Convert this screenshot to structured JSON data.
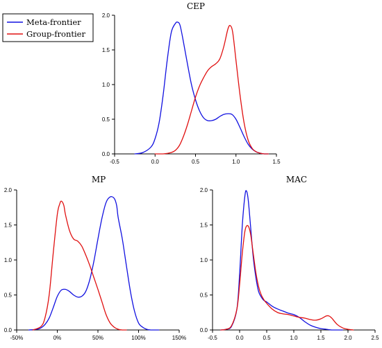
{
  "legend": {
    "items": [
      {
        "name": "Meta-frontier",
        "color": "#1010e0"
      },
      {
        "name": "Group-frontier",
        "color": "#e01010"
      }
    ],
    "placement": "top-left"
  },
  "chart_data": [
    {
      "type": "line",
      "title": "CEP",
      "xlabel": "",
      "ylabel": "",
      "xlim": [
        -0.5,
        1.5
      ],
      "ylim": [
        0,
        2.0
      ],
      "xticks": [
        "-0.5",
        "0.0",
        "0.5",
        "1.0",
        "1.5"
      ],
      "xtick_values": [
        -0.5,
        0.0,
        0.5,
        1.0,
        1.5
      ],
      "yticks": [
        "0.0",
        "0.5",
        "1.0",
        "1.5",
        "2.0"
      ],
      "ytick_values": [
        0,
        0.5,
        1.0,
        1.5,
        2.0
      ],
      "grid": false,
      "series": [
        {
          "name": "Meta-frontier",
          "color": "#1010e0",
          "x": [
            -0.25,
            -0.15,
            -0.05,
            0.0,
            0.05,
            0.1,
            0.15,
            0.2,
            0.25,
            0.28,
            0.31,
            0.35,
            0.4,
            0.45,
            0.5,
            0.55,
            0.6,
            0.65,
            0.7,
            0.75,
            0.8,
            0.85,
            0.9,
            0.95,
            1.0,
            1.05,
            1.1,
            1.15,
            1.2,
            1.25,
            1.3,
            1.35,
            1.4
          ],
          "values": [
            0.0,
            0.02,
            0.1,
            0.22,
            0.45,
            0.85,
            1.35,
            1.75,
            1.88,
            1.9,
            1.85,
            1.62,
            1.3,
            1.0,
            0.78,
            0.62,
            0.52,
            0.48,
            0.48,
            0.5,
            0.54,
            0.57,
            0.58,
            0.57,
            0.5,
            0.38,
            0.25,
            0.14,
            0.07,
            0.03,
            0.01,
            0.0,
            0.0
          ]
        },
        {
          "name": "Group-frontier",
          "color": "#e01010",
          "x": [
            0.0,
            0.1,
            0.2,
            0.25,
            0.3,
            0.35,
            0.4,
            0.45,
            0.5,
            0.55,
            0.6,
            0.65,
            0.7,
            0.75,
            0.8,
            0.85,
            0.9,
            0.93,
            0.96,
            1.0,
            1.05,
            1.1,
            1.15,
            1.2,
            1.25,
            1.3,
            1.35,
            1.4
          ],
          "values": [
            0.0,
            0.0,
            0.02,
            0.05,
            0.12,
            0.25,
            0.42,
            0.62,
            0.82,
            0.98,
            1.1,
            1.2,
            1.26,
            1.3,
            1.37,
            1.55,
            1.8,
            1.85,
            1.75,
            1.35,
            0.85,
            0.45,
            0.2,
            0.08,
            0.03,
            0.01,
            0.0,
            0.0
          ]
        }
      ]
    },
    {
      "type": "line",
      "title": "MP",
      "xlabel": "",
      "ylabel": "",
      "xlim": [
        -50,
        150
      ],
      "ylim": [
        0,
        2.0
      ],
      "xticks": [
        "-50%",
        "0%",
        "50%",
        "100%",
        "150%"
      ],
      "xtick_values": [
        -50,
        0,
        50,
        100,
        150
      ],
      "yticks": [
        "0.0",
        "0.5",
        "1.0",
        "1.5",
        "2.0"
      ],
      "ytick_values": [
        0,
        0.5,
        1.0,
        1.5,
        2.0
      ],
      "grid": false,
      "series": [
        {
          "name": "Meta-frontier",
          "color": "#1010e0",
          "x": [
            -35,
            -25,
            -20,
            -15,
            -10,
            -5,
            0,
            5,
            10,
            15,
            20,
            25,
            30,
            35,
            40,
            45,
            50,
            55,
            60,
            65,
            70,
            73,
            75,
            80,
            85,
            90,
            95,
            100,
            105,
            110,
            115,
            120,
            125
          ],
          "values": [
            0.0,
            0.01,
            0.03,
            0.08,
            0.17,
            0.32,
            0.48,
            0.57,
            0.58,
            0.55,
            0.5,
            0.47,
            0.48,
            0.55,
            0.72,
            0.98,
            1.3,
            1.6,
            1.82,
            1.9,
            1.88,
            1.78,
            1.6,
            1.3,
            0.92,
            0.55,
            0.27,
            0.1,
            0.04,
            0.01,
            0.0,
            0.0,
            0.0
          ]
        },
        {
          "name": "Group-frontier",
          "color": "#e01010",
          "x": [
            -30,
            -20,
            -15,
            -10,
            -5,
            0,
            3,
            5,
            8,
            10,
            15,
            20,
            25,
            30,
            35,
            40,
            45,
            50,
            55,
            60,
            65,
            70,
            75,
            80,
            85
          ],
          "values": [
            0.0,
            0.05,
            0.18,
            0.5,
            1.1,
            1.65,
            1.8,
            1.84,
            1.78,
            1.65,
            1.42,
            1.3,
            1.27,
            1.2,
            1.07,
            0.92,
            0.75,
            0.58,
            0.4,
            0.22,
            0.1,
            0.04,
            0.01,
            0.0,
            0.0
          ]
        }
      ]
    },
    {
      "type": "line",
      "title": "MAC",
      "xlabel": "",
      "ylabel": "",
      "xlim": [
        -0.5,
        2.5
      ],
      "ylim": [
        0,
        2.0
      ],
      "xticks": [
        "-0.5",
        "0.0",
        "0.5",
        "1.0",
        "1.5",
        "2.0",
        "2.5"
      ],
      "xtick_values": [
        -0.5,
        0.0,
        0.5,
        1.0,
        1.5,
        2.0,
        2.5
      ],
      "yticks": [
        "0.0",
        "0.5",
        "1.0",
        "1.5",
        "2.0"
      ],
      "ytick_values": [
        0,
        0.5,
        1.0,
        1.5,
        2.0
      ],
      "grid": false,
      "series": [
        {
          "name": "Meta-frontier",
          "color": "#1010e0",
          "x": [
            -0.35,
            -0.25,
            -0.15,
            -0.05,
            0.0,
            0.05,
            0.1,
            0.13,
            0.16,
            0.2,
            0.25,
            0.3,
            0.35,
            0.4,
            0.45,
            0.5,
            0.6,
            0.7,
            0.8,
            0.9,
            1.0,
            1.1,
            1.2,
            1.3,
            1.4,
            1.5,
            1.6,
            1.7,
            1.8,
            1.9
          ],
          "values": [
            0.0,
            0.01,
            0.05,
            0.3,
            0.8,
            1.5,
            1.93,
            1.98,
            1.85,
            1.5,
            1.05,
            0.75,
            0.55,
            0.47,
            0.42,
            0.4,
            0.34,
            0.3,
            0.27,
            0.24,
            0.22,
            0.18,
            0.12,
            0.07,
            0.04,
            0.02,
            0.01,
            0.0,
            0.0,
            0.0
          ]
        },
        {
          "name": "Group-frontier",
          "color": "#e01010",
          "x": [
            -0.35,
            -0.25,
            -0.15,
            -0.05,
            0.0,
            0.05,
            0.1,
            0.15,
            0.2,
            0.25,
            0.3,
            0.35,
            0.4,
            0.45,
            0.5,
            0.6,
            0.7,
            0.8,
            0.9,
            1.0,
            1.1,
            1.2,
            1.3,
            1.4,
            1.5,
            1.6,
            1.65,
            1.7,
            1.8,
            1.9,
            2.0,
            2.1
          ],
          "values": [
            0.0,
            0.01,
            0.06,
            0.3,
            0.65,
            1.1,
            1.42,
            1.49,
            1.38,
            1.1,
            0.82,
            0.62,
            0.5,
            0.43,
            0.38,
            0.3,
            0.25,
            0.23,
            0.22,
            0.2,
            0.18,
            0.17,
            0.15,
            0.14,
            0.16,
            0.2,
            0.2,
            0.17,
            0.08,
            0.03,
            0.01,
            0.0
          ]
        }
      ]
    }
  ]
}
